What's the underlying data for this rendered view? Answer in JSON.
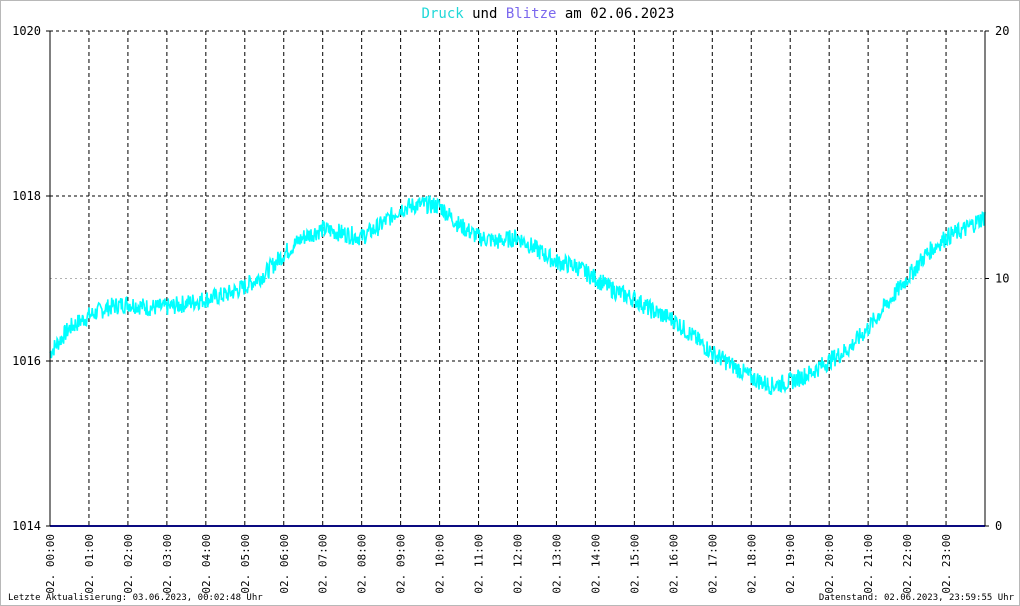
{
  "title": {
    "part1": "Druck",
    "part2": " und ",
    "part3": "Blitze",
    "part4": " am 02.06.2023"
  },
  "colors": {
    "pressure": "#00ffff",
    "lightning": "#6a5acd",
    "title_pressure": "#20d8d8",
    "title_lightning": "#7b68ee",
    "axis_bottom": "#0a0a80"
  },
  "footer": {
    "left": "Letzte Aktualisierung: 03.06.2023, 00:02:48 Uhr",
    "right": "Datenstand: 02.06.2023, 23:59:55 Uhr"
  },
  "chart_data": {
    "type": "line",
    "title": "Druck und Blitze am 02.06.2023",
    "x_ticks": [
      "02. 00:00",
      "02. 01:00",
      "02. 02:00",
      "02. 03:00",
      "02. 04:00",
      "02. 05:00",
      "02. 06:00",
      "02. 07:00",
      "02. 08:00",
      "02. 09:00",
      "02. 10:00",
      "02. 11:00",
      "02. 12:00",
      "02. 13:00",
      "02. 14:00",
      "02. 15:00",
      "02. 16:00",
      "02. 17:00",
      "02. 18:00",
      "02. 19:00",
      "02. 20:00",
      "02. 21:00",
      "02. 22:00",
      "02. 23:00"
    ],
    "y_left": {
      "ticks": [
        "1014",
        "1016",
        "1018",
        "1020"
      ],
      "range": [
        1014,
        1020
      ]
    },
    "y_right": {
      "ticks": [
        "0",
        "10",
        "20"
      ],
      "range": [
        0,
        20
      ]
    },
    "grid": true,
    "series": [
      {
        "name": "Druck",
        "axis": "left",
        "x_hours": [
          0,
          0.5,
          1,
          1.5,
          2,
          2.5,
          3,
          3.5,
          4,
          4.5,
          5,
          5.5,
          6,
          6.5,
          7,
          7.5,
          8,
          8.5,
          9,
          9.5,
          10,
          10.5,
          11,
          11.5,
          12,
          12.5,
          13,
          13.5,
          14,
          14.5,
          15,
          15.5,
          16,
          16.5,
          17,
          17.5,
          18,
          18.5,
          19,
          19.5,
          20,
          20.5,
          21,
          21.5,
          22,
          22.5,
          23,
          23.5,
          24
        ],
        "values": [
          1016.1,
          1016.4,
          1016.55,
          1016.65,
          1016.7,
          1016.65,
          1016.65,
          1016.7,
          1016.75,
          1016.8,
          1016.9,
          1017.05,
          1017.3,
          1017.5,
          1017.6,
          1017.55,
          1017.5,
          1017.65,
          1017.85,
          1017.9,
          1017.88,
          1017.65,
          1017.5,
          1017.45,
          1017.5,
          1017.35,
          1017.2,
          1017.15,
          1017.0,
          1016.85,
          1016.75,
          1016.6,
          1016.5,
          1016.3,
          1016.1,
          1015.95,
          1015.8,
          1015.7,
          1015.75,
          1015.85,
          1016.0,
          1016.15,
          1016.4,
          1016.7,
          1017.0,
          1017.3,
          1017.5,
          1017.6,
          1017.75
        ]
      },
      {
        "name": "Blitze",
        "axis": "right",
        "x_hours": [
          0,
          24
        ],
        "values": [
          0,
          0
        ]
      }
    ]
  }
}
